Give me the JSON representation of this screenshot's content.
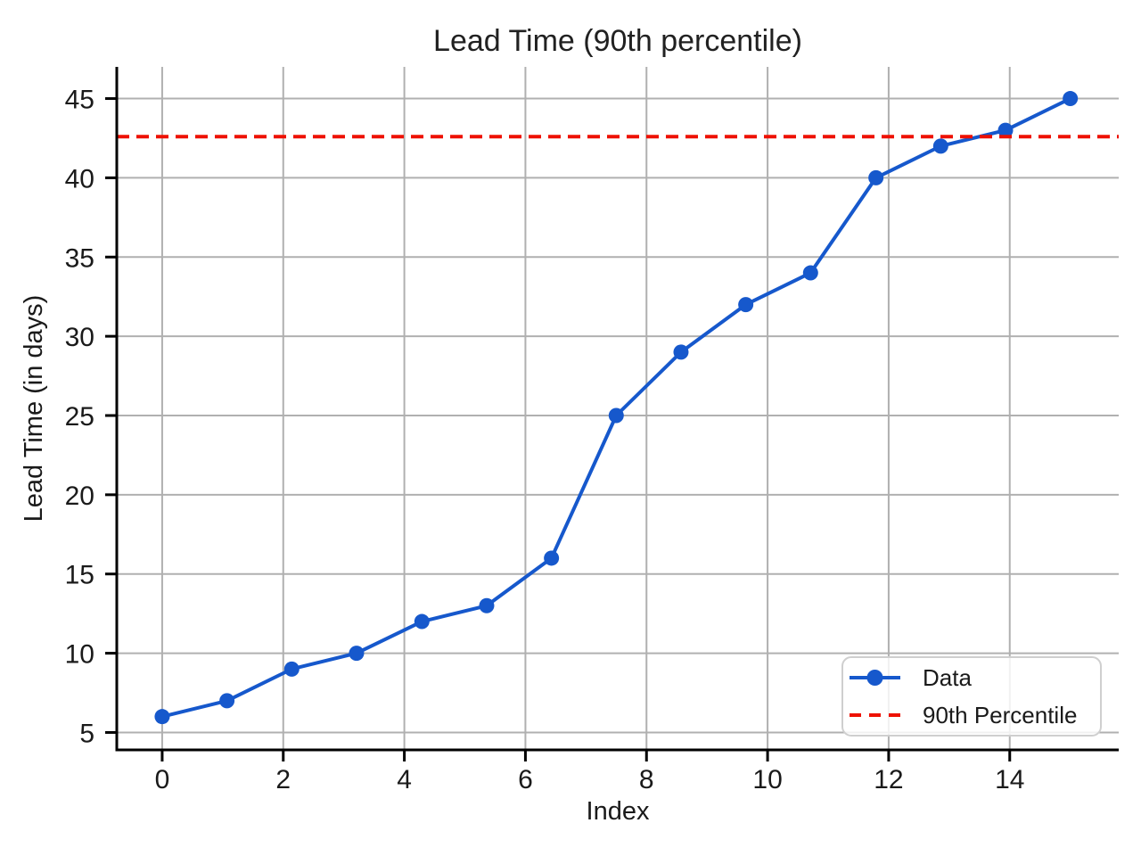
{
  "chart_data": {
    "type": "line",
    "title": "Lead Time (90th percentile)",
    "xlabel": "Index",
    "ylabel": "Lead Time (in days)",
    "x": [
      0,
      1.07,
      2.14,
      3.21,
      4.29,
      5.36,
      6.43,
      7.5,
      8.57,
      9.64,
      10.71,
      11.79,
      12.86,
      13.93,
      15
    ],
    "series": [
      {
        "name": "Data",
        "style": "solid-line-with-markers",
        "color": "#1658cc",
        "values": [
          6,
          7,
          9,
          10,
          12,
          13,
          16,
          25,
          29,
          32,
          34,
          40,
          42,
          43,
          45
        ]
      },
      {
        "name": "90th Percentile",
        "style": "dashed-horizontal-line",
        "color": "#ee1100",
        "value": 42.6
      }
    ],
    "xlim": [
      -0.75,
      15.8
    ],
    "ylim": [
      3.9,
      47.0
    ],
    "xticks": [
      0,
      2,
      4,
      6,
      8,
      10,
      12,
      14
    ],
    "yticks": [
      5,
      10,
      15,
      20,
      25,
      30,
      35,
      40,
      45
    ],
    "grid": true,
    "legend_position": "lower right",
    "grid_color": "#b0b0b0",
    "axis_color": "#000000",
    "text_color": "#1a1a1a",
    "background": "#ffffff"
  }
}
